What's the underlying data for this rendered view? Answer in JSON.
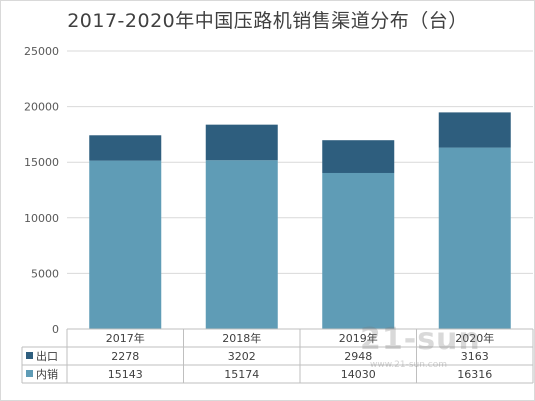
{
  "chart_data": {
    "type": "bar",
    "stacked": true,
    "title": "2017-2020年中国压路机销售渠道分布（台）",
    "categories": [
      "2017年",
      "2018年",
      "2019年",
      "2020年"
    ],
    "series": [
      {
        "name": "内销",
        "values": [
          15143,
          15174,
          14030,
          16316
        ],
        "color": "#5f9cb6"
      },
      {
        "name": "出口",
        "values": [
          2278,
          3202,
          2948,
          3163
        ],
        "color": "#2e5e7e"
      }
    ],
    "ylim": [
      0,
      25000
    ],
    "yticks": [
      0,
      5000,
      10000,
      15000,
      20000,
      25000
    ],
    "grid": true,
    "legend": "data-table",
    "data_table": [
      {
        "name": "出口",
        "values": [
          "2278",
          "3202",
          "2948",
          "3163"
        ]
      },
      {
        "name": "内销",
        "values": [
          "15143",
          "15174",
          "14030",
          "16316"
        ]
      }
    ]
  },
  "watermark": {
    "logo": "21-sun",
    "sub": "www.21-sun.com"
  }
}
